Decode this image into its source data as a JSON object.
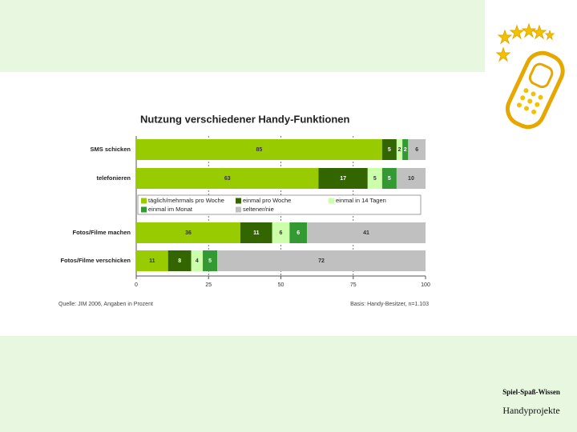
{
  "chart_data": {
    "type": "stacked_bar_horizontal",
    "title": "Nutzung verschiedener Handy-Funktionen",
    "categories": [
      "SMS schicken",
      "telefonieren",
      "Fotos/Filme machen",
      "Fotos/Filme verschicken"
    ],
    "series": [
      {
        "name": "täglich/mehrmals pro Woche",
        "color": "#99cc00",
        "values": [
          85,
          63,
          36,
          11
        ]
      },
      {
        "name": "einmal pro Woche",
        "color": "#336600",
        "values": [
          5,
          17,
          11,
          8
        ]
      },
      {
        "name": "einmal in 14 Tagen",
        "color": "#ccffaa",
        "values": [
          2,
          5,
          6,
          4
        ]
      },
      {
        "name": "einmal im Monat",
        "color": "#339933",
        "values": [
          2,
          5,
          6,
          5
        ]
      },
      {
        "name": "seltener/nie",
        "color": "#c0c0c0",
        "values": [
          6,
          10,
          41,
          72
        ]
      }
    ],
    "xlim": [
      0,
      100
    ],
    "xticks": [
      0,
      25,
      50,
      75,
      100
    ],
    "grid": true,
    "source": "Quelle: JIM 2006, Angaben in Prozent",
    "base": "Basis: Handy-Besitzer, n=1.103"
  },
  "footer": {
    "tagline": "Spiel-Spaß-Wissen",
    "project": "Handyprojekte"
  }
}
